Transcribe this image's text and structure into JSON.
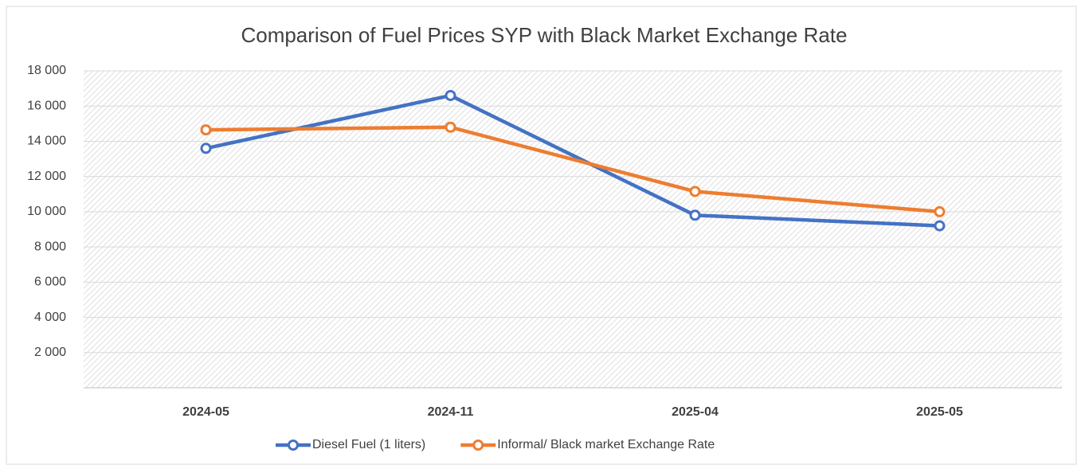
{
  "chart_data": {
    "type": "line",
    "title": "Comparison of Fuel Prices SYP with Black Market Exchange Rate",
    "categories": [
      "2024-05",
      "2024-11",
      "2025-04",
      "2025-05"
    ],
    "series": [
      {
        "name": "Diesel Fuel (1 liters)",
        "color": "#4472c4",
        "values": [
          13600,
          16600,
          9800,
          9200
        ]
      },
      {
        "name": "Informal/ Black market Exchange Rate",
        "color": "#ed7d31",
        "values": [
          14650,
          14800,
          11150,
          10000
        ]
      }
    ],
    "ylim": [
      0,
      18000
    ],
    "yticks": [
      {
        "value": 2000,
        "label": "2 000"
      },
      {
        "value": 4000,
        "label": "4 000"
      },
      {
        "value": 6000,
        "label": "6 000"
      },
      {
        "value": 8000,
        "label": "8 000"
      },
      {
        "value": 10000,
        "label": "10 000"
      },
      {
        "value": 12000,
        "label": "12 000"
      },
      {
        "value": 14000,
        "label": "14 000"
      },
      {
        "value": 16000,
        "label": "16 000"
      },
      {
        "value": 18000,
        "label": "18 000"
      }
    ],
    "grid": true
  }
}
